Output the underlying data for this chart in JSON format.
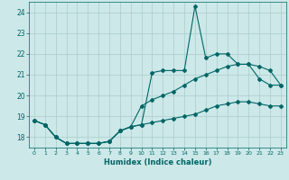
{
  "xlabel": "Humidex (Indice chaleur)",
  "bg_color": "#cce8e8",
  "grid_color": "#aacccc",
  "line_color": "#006666",
  "xlim": [
    -0.5,
    23.5
  ],
  "ylim": [
    17.5,
    24.5
  ],
  "yticks": [
    18,
    19,
    20,
    21,
    22,
    23,
    24
  ],
  "xticks": [
    0,
    1,
    2,
    3,
    4,
    5,
    6,
    7,
    8,
    9,
    10,
    11,
    12,
    13,
    14,
    15,
    16,
    17,
    18,
    19,
    20,
    21,
    22,
    23
  ],
  "series": [
    [
      18.8,
      18.6,
      18.0,
      17.7,
      17.7,
      17.7,
      17.7,
      17.8,
      18.3,
      18.5,
      18.6,
      21.1,
      21.2,
      21.2,
      21.2,
      24.3,
      21.8,
      22.0,
      22.0,
      21.5,
      21.5,
      20.8,
      20.5,
      20.5
    ],
    [
      18.8,
      18.6,
      18.0,
      17.7,
      17.7,
      17.7,
      17.7,
      17.8,
      18.3,
      18.5,
      19.5,
      19.8,
      20.0,
      20.2,
      20.5,
      20.8,
      21.0,
      21.2,
      21.4,
      21.5,
      21.5,
      21.4,
      21.2,
      20.5
    ],
    [
      18.8,
      18.6,
      18.0,
      17.7,
      17.7,
      17.7,
      17.7,
      17.8,
      18.3,
      18.5,
      18.6,
      18.7,
      18.8,
      18.9,
      19.0,
      19.1,
      19.3,
      19.5,
      19.6,
      19.7,
      19.7,
      19.6,
      19.5,
      19.5
    ]
  ]
}
